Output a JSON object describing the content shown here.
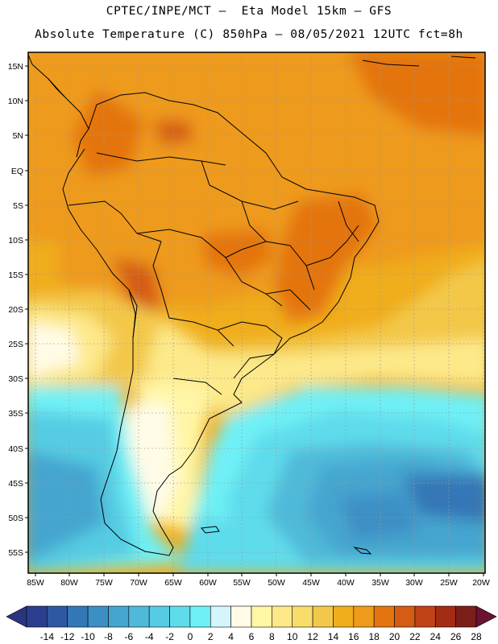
{
  "header": {
    "title_line1": "CPTEC/INPE/MCT –  Eta Model 15km – GFS",
    "title_line2": "Absolute Temperature (C) 850hPa – 08/05/2021 12UTC fct=8h"
  },
  "map": {
    "lat_labels": [
      "15N",
      "10N",
      "5N",
      "EQ",
      "5S",
      "10S",
      "15S",
      "20S",
      "25S",
      "30S",
      "35S",
      "40S",
      "45S",
      "50S",
      "55S"
    ],
    "lon_labels": [
      "85W",
      "80W",
      "75W",
      "70W",
      "65W",
      "60W",
      "55W",
      "50W",
      "45W",
      "40W",
      "35W",
      "30W",
      "25W",
      "20W"
    ],
    "lat_range": [
      15,
      -55
    ],
    "lon_range": [
      -85,
      -20
    ],
    "grid": true,
    "field": "850hPa temperature, warm north (20–26 C), cold south-east ocean (-12 to -4 C)"
  },
  "colorbar": {
    "labels": [
      "-14",
      "-12",
      "-10",
      "-8",
      "-6",
      "-4",
      "-2",
      "0",
      "2",
      "4",
      "6",
      "8",
      "10",
      "12",
      "14",
      "16",
      "18",
      "20",
      "22",
      "24",
      "26",
      "28"
    ],
    "colors": [
      "#2b3f8f",
      "#2f58a3",
      "#3477b6",
      "#3c8fc4",
      "#45a5cf",
      "#4fb9d9",
      "#55cce3",
      "#5fdceb",
      "#6ff0f6",
      "#d4f5fb",
      "#fffbe6",
      "#fff6a6",
      "#fde98a",
      "#f8dd6a",
      "#f3c84a",
      "#f0ad1c",
      "#ee9a1a",
      "#e4740f",
      "#d55c14",
      "#bf4316",
      "#a22c15",
      "#7a1f1a"
    ]
  }
}
